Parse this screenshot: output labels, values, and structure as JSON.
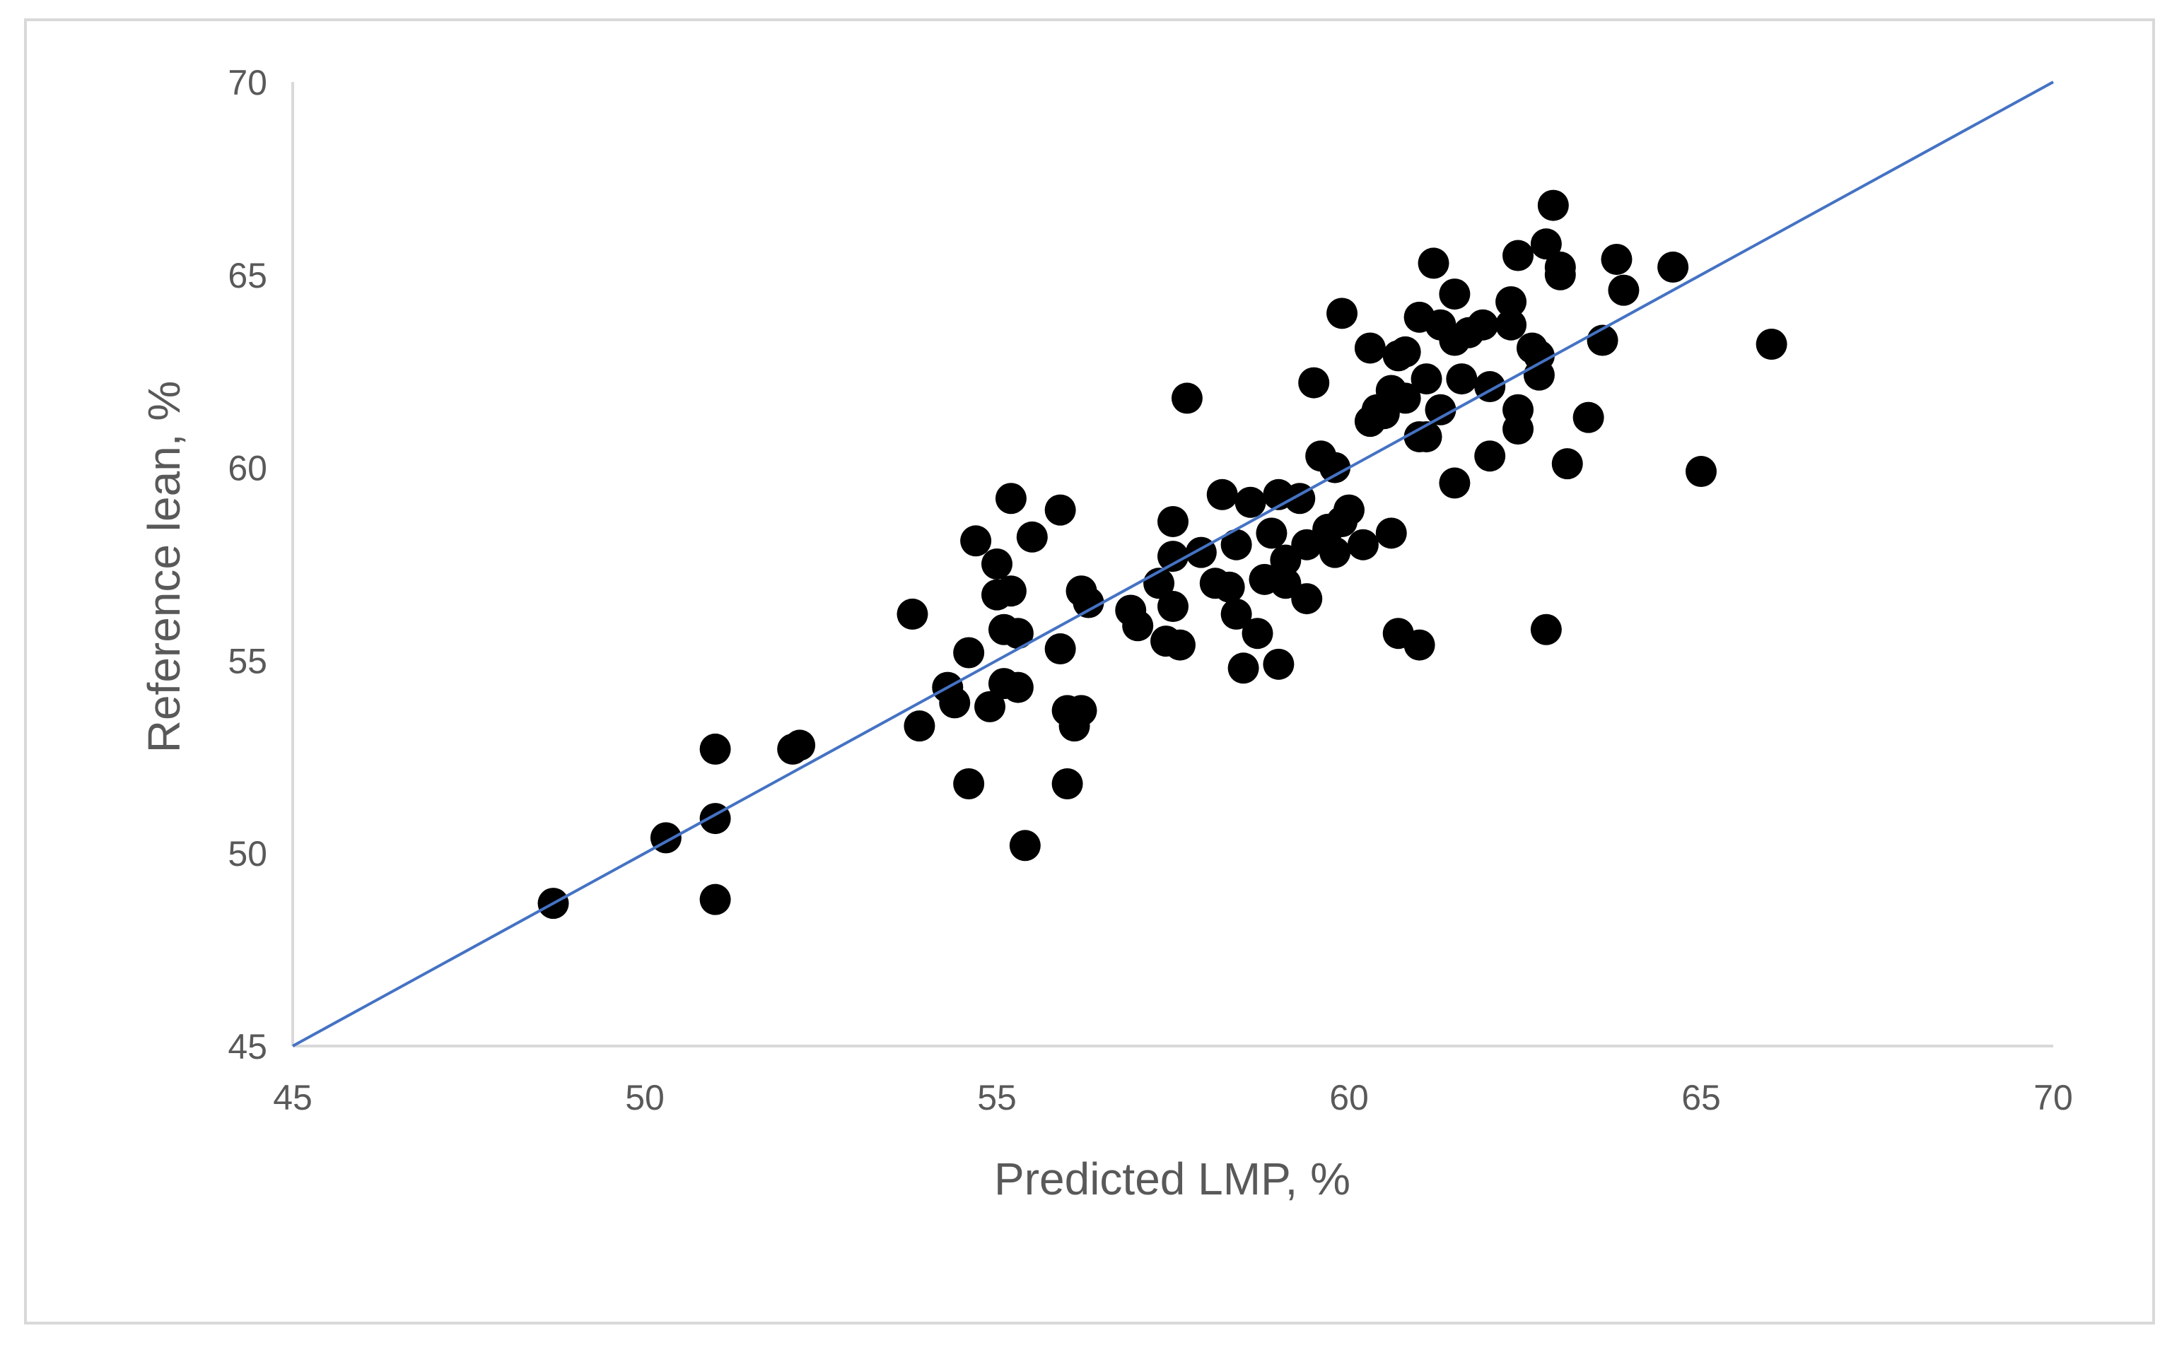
{
  "chart_data": {
    "type": "scatter",
    "title": "",
    "xlabel": "Predicted LMP, %",
    "ylabel": "Reference lean, %",
    "xlim": [
      45,
      70
    ],
    "ylim": [
      45,
      70
    ],
    "x_ticks": [
      "45",
      "50",
      "55",
      "60",
      "65",
      "70"
    ],
    "y_ticks": [
      "45",
      "50",
      "55",
      "60",
      "65",
      "70"
    ],
    "grid": false,
    "legend": "none",
    "marker_color": "#000000",
    "line_color": "#4472c4",
    "axis_color": "#d9d9d9",
    "reference_line": {
      "x": [
        45,
        70
      ],
      "y": [
        45,
        70
      ]
    },
    "series": [
      {
        "points": [
          [
            48.7,
            48.7
          ],
          [
            50.3,
            50.4
          ],
          [
            51.0,
            52.7
          ],
          [
            51.0,
            48.8
          ],
          [
            51.0,
            50.9
          ],
          [
            52.1,
            52.7
          ],
          [
            52.2,
            52.8
          ],
          [
            53.8,
            56.2
          ],
          [
            53.9,
            53.3
          ],
          [
            54.3,
            54.3
          ],
          [
            54.4,
            53.9
          ],
          [
            54.6,
            51.8
          ],
          [
            54.6,
            55.2
          ],
          [
            54.7,
            58.1
          ],
          [
            54.9,
            53.8
          ],
          [
            55.0,
            56.7
          ],
          [
            55.0,
            57.5
          ],
          [
            55.1,
            55.8
          ],
          [
            55.1,
            54.4
          ],
          [
            55.2,
            59.2
          ],
          [
            55.2,
            56.8
          ],
          [
            55.3,
            55.7
          ],
          [
            55.3,
            54.3
          ],
          [
            55.4,
            50.2
          ],
          [
            55.5,
            58.2
          ],
          [
            55.9,
            55.3
          ],
          [
            55.9,
            58.9
          ],
          [
            56.0,
            53.7
          ],
          [
            56.0,
            51.8
          ],
          [
            56.1,
            53.3
          ],
          [
            56.2,
            56.8
          ],
          [
            56.2,
            53.7
          ],
          [
            56.3,
            56.5
          ],
          [
            56.9,
            56.3
          ],
          [
            57.0,
            55.9
          ],
          [
            57.3,
            57.0
          ],
          [
            57.4,
            55.5
          ],
          [
            57.5,
            58.6
          ],
          [
            57.5,
            57.7
          ],
          [
            57.5,
            56.4
          ],
          [
            57.6,
            55.4
          ],
          [
            57.7,
            61.8
          ],
          [
            57.9,
            57.8
          ],
          [
            58.1,
            57.0
          ],
          [
            58.2,
            59.3
          ],
          [
            58.3,
            56.9
          ],
          [
            58.4,
            56.2
          ],
          [
            58.4,
            58.0
          ],
          [
            58.5,
            54.8
          ],
          [
            58.6,
            59.1
          ],
          [
            58.7,
            55.7
          ],
          [
            58.8,
            57.1
          ],
          [
            58.9,
            58.3
          ],
          [
            59.0,
            54.9
          ],
          [
            59.0,
            59.3
          ],
          [
            59.1,
            57.0
          ],
          [
            59.1,
            57.6
          ],
          [
            59.3,
            59.2
          ],
          [
            59.4,
            56.6
          ],
          [
            59.4,
            58.0
          ],
          [
            59.5,
            62.2
          ],
          [
            59.6,
            60.3
          ],
          [
            59.7,
            58.4
          ],
          [
            59.8,
            60.0
          ],
          [
            59.8,
            57.8
          ],
          [
            59.9,
            64.0
          ],
          [
            59.9,
            58.6
          ],
          [
            60.0,
            58.9
          ],
          [
            60.2,
            58.0
          ],
          [
            60.3,
            63.1
          ],
          [
            60.3,
            61.2
          ],
          [
            60.4,
            61.5
          ],
          [
            60.5,
            61.4
          ],
          [
            60.6,
            62.0
          ],
          [
            60.6,
            58.3
          ],
          [
            60.7,
            62.9
          ],
          [
            60.7,
            55.7
          ],
          [
            60.8,
            61.8
          ],
          [
            60.8,
            63.0
          ],
          [
            61.0,
            55.4
          ],
          [
            61.0,
            60.8
          ],
          [
            61.0,
            63.9
          ],
          [
            61.1,
            62.3
          ],
          [
            61.1,
            60.8
          ],
          [
            61.2,
            65.3
          ],
          [
            61.3,
            63.7
          ],
          [
            61.3,
            61.5
          ],
          [
            61.5,
            63.3
          ],
          [
            61.5,
            59.6
          ],
          [
            61.5,
            64.5
          ],
          [
            61.6,
            62.3
          ],
          [
            61.7,
            63.5
          ],
          [
            61.9,
            63.7
          ],
          [
            62.0,
            60.3
          ],
          [
            62.0,
            62.1
          ],
          [
            62.3,
            64.3
          ],
          [
            62.3,
            63.7
          ],
          [
            62.4,
            65.5
          ],
          [
            62.4,
            61.5
          ],
          [
            62.4,
            61.0
          ],
          [
            62.6,
            63.1
          ],
          [
            62.7,
            62.9
          ],
          [
            62.7,
            62.4
          ],
          [
            62.8,
            55.8
          ],
          [
            62.8,
            65.8
          ],
          [
            62.9,
            66.8
          ],
          [
            63.0,
            65.0
          ],
          [
            63.0,
            65.2
          ],
          [
            63.1,
            60.1
          ],
          [
            63.4,
            61.3
          ],
          [
            63.6,
            63.3
          ],
          [
            63.8,
            65.4
          ],
          [
            63.9,
            64.6
          ],
          [
            64.6,
            65.2
          ],
          [
            65.0,
            59.9
          ],
          [
            66.0,
            63.2
          ]
        ]
      }
    ]
  }
}
